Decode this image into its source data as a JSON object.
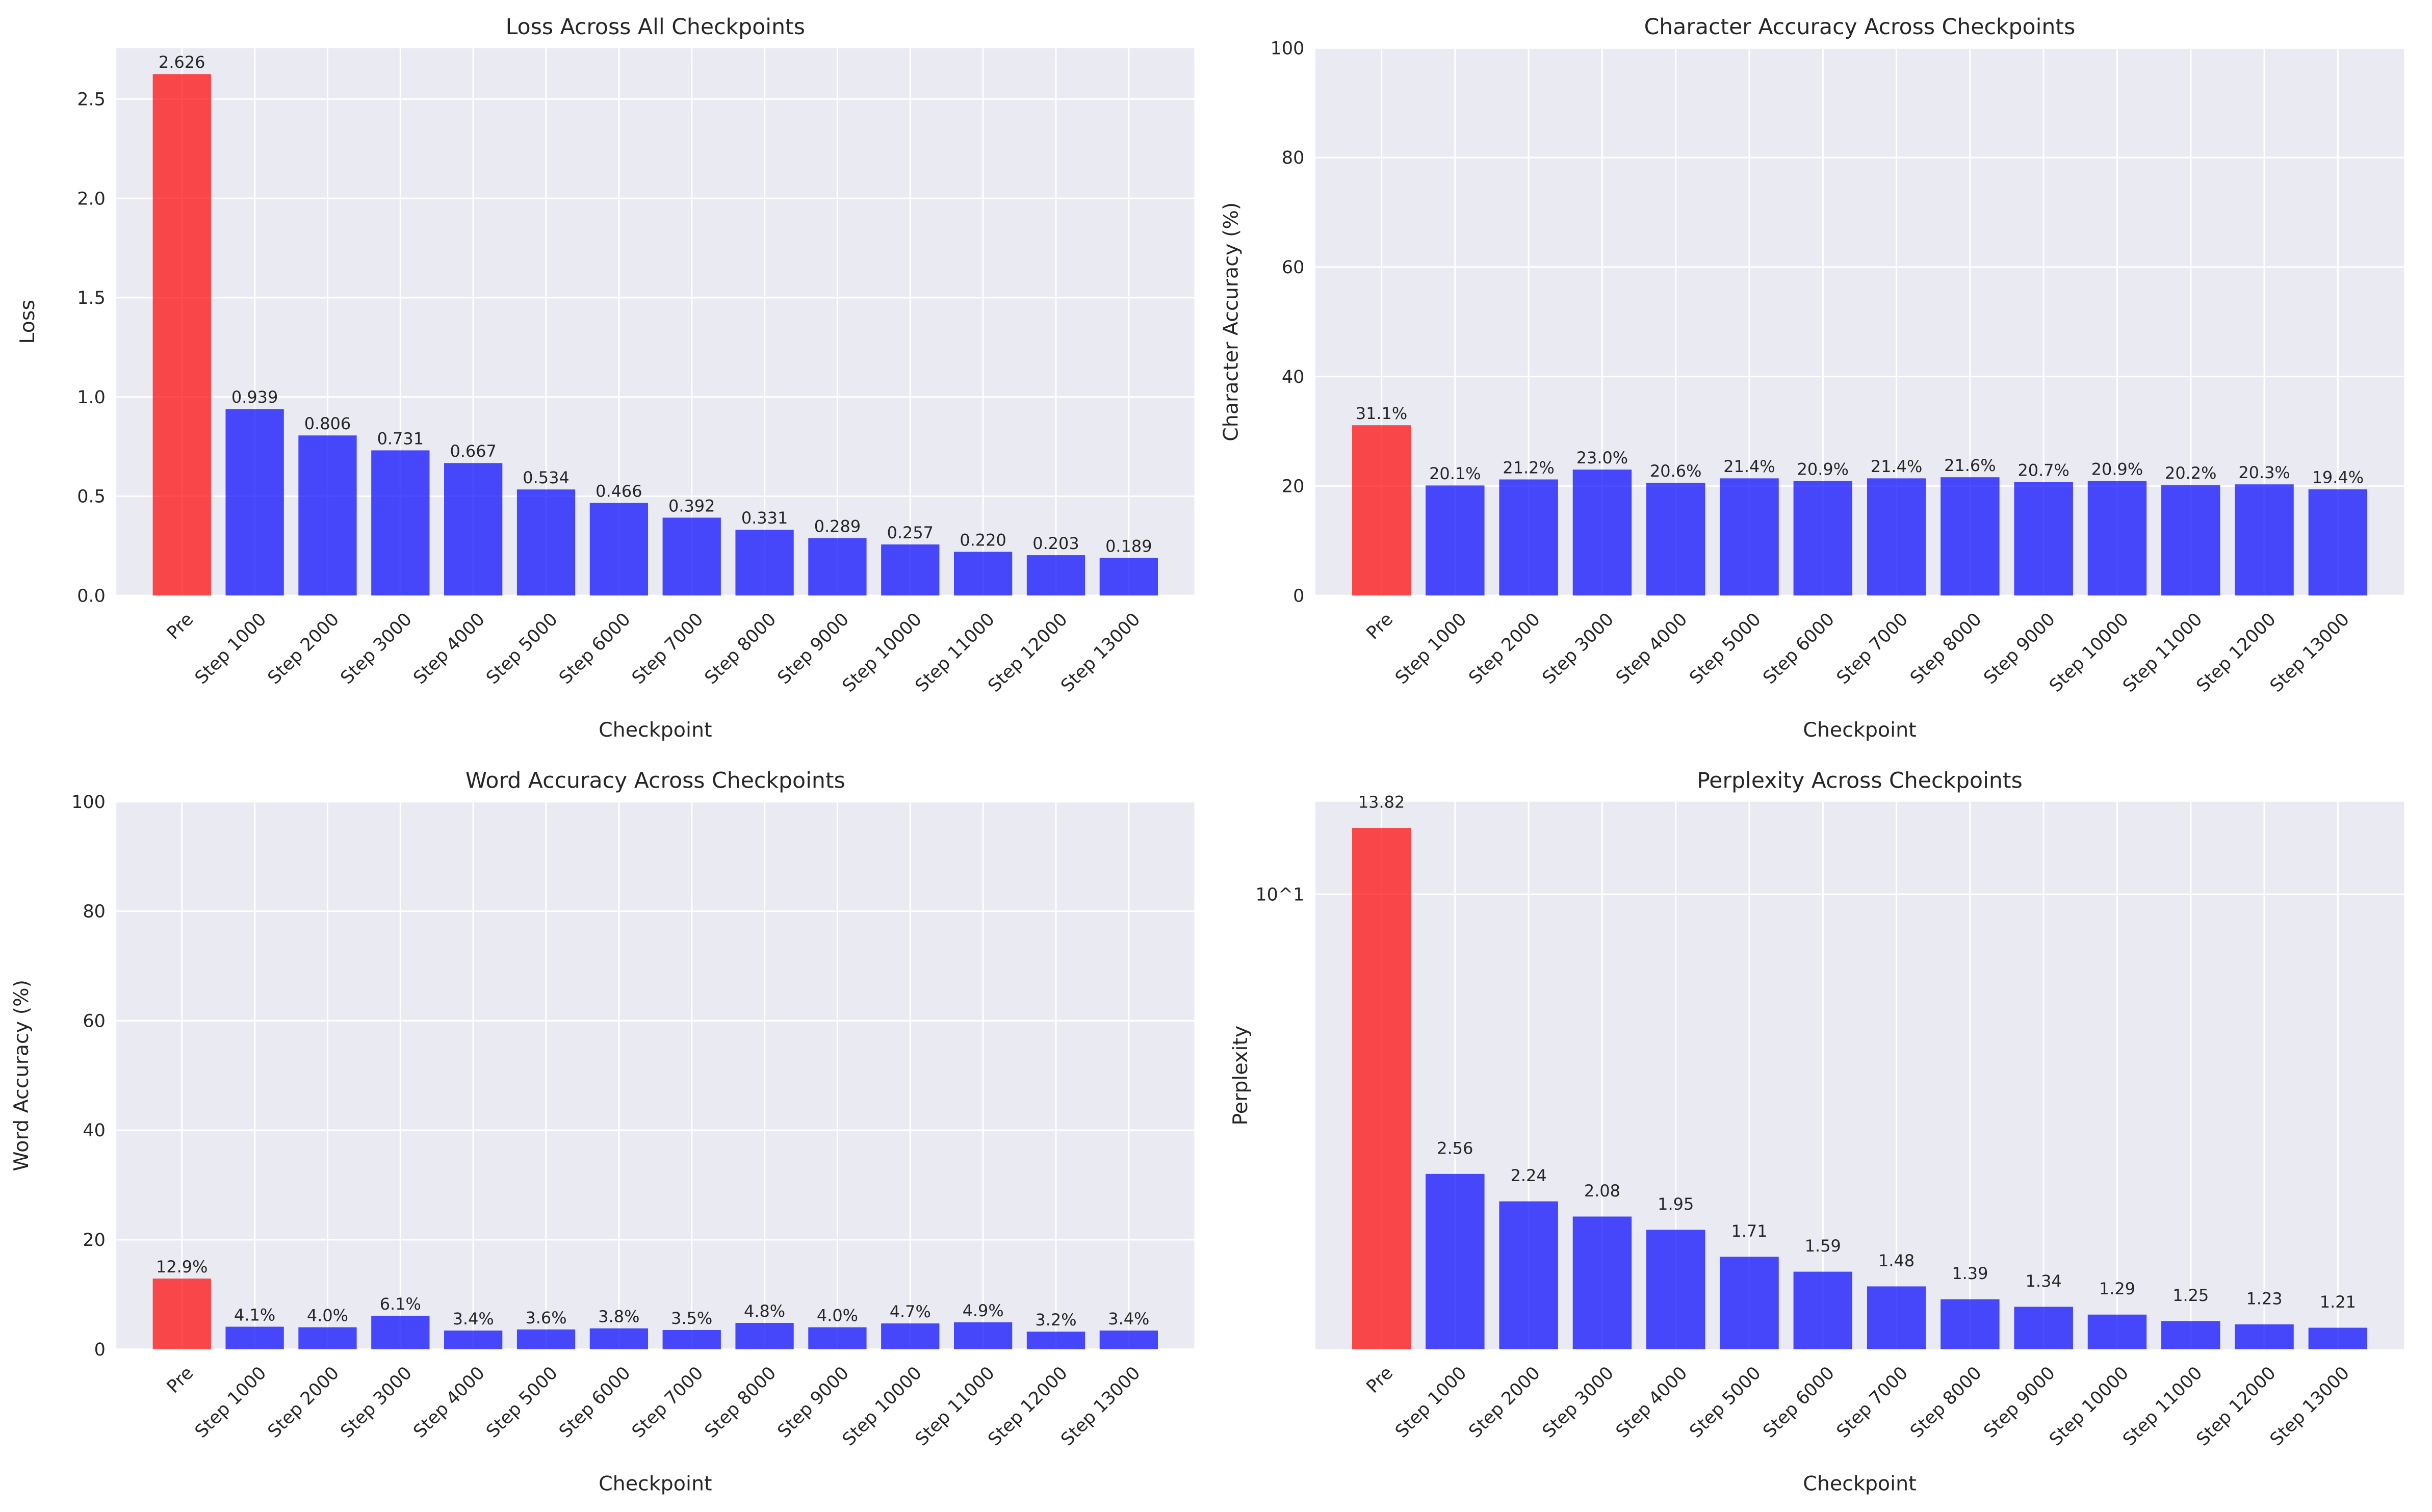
{
  "colors": {
    "pre": "#ff0000",
    "step": "#0000ff",
    "background": "#eaeaf2",
    "grid": "#ffffff"
  },
  "chart_data": [
    {
      "type": "bar",
      "title": "Loss Across All Checkpoints",
      "xlabel": "Checkpoint",
      "ylabel": "Loss",
      "categories": [
        "Pre",
        "Step 1000",
        "Step 2000",
        "Step 3000",
        "Step 4000",
        "Step 5000",
        "Step 6000",
        "Step 7000",
        "Step 8000",
        "Step 9000",
        "Step 10000",
        "Step 11000",
        "Step 12000",
        "Step 13000"
      ],
      "values": [
        2.626,
        0.939,
        0.806,
        0.731,
        0.667,
        0.534,
        0.466,
        0.392,
        0.331,
        0.289,
        0.257,
        0.22,
        0.203,
        0.189
      ],
      "data_labels": [
        "2.626",
        "0.939",
        "0.806",
        "0.731",
        "0.667",
        "0.534",
        "0.466",
        "0.392",
        "0.331",
        "0.289",
        "0.257",
        "0.220",
        "0.203",
        "0.189"
      ],
      "ylim": [
        0,
        2.757
      ],
      "yscale": "linear",
      "yticks": [
        0,
        0.5,
        1.0,
        1.5,
        2.0,
        2.5
      ],
      "ytick_labels": [
        "0.0",
        "0.5",
        "1.0",
        "1.5",
        "2.0",
        "2.5"
      ],
      "grid": true
    },
    {
      "type": "bar",
      "title": "Character Accuracy Across Checkpoints",
      "xlabel": "Checkpoint",
      "ylabel": "Character Accuracy (%)",
      "categories": [
        "Pre",
        "Step 1000",
        "Step 2000",
        "Step 3000",
        "Step 4000",
        "Step 5000",
        "Step 6000",
        "Step 7000",
        "Step 8000",
        "Step 9000",
        "Step 10000",
        "Step 11000",
        "Step 12000",
        "Step 13000"
      ],
      "values": [
        31.1,
        20.1,
        21.2,
        23.0,
        20.6,
        21.4,
        20.9,
        21.4,
        21.6,
        20.7,
        20.9,
        20.2,
        20.3,
        19.4
      ],
      "data_labels": [
        "31.1%",
        "20.1%",
        "21.2%",
        "23.0%",
        "20.6%",
        "21.4%",
        "20.9%",
        "21.4%",
        "21.6%",
        "20.7%",
        "20.9%",
        "20.2%",
        "20.3%",
        "19.4%"
      ],
      "ylim": [
        0,
        100
      ],
      "yscale": "linear",
      "yticks": [
        0,
        20,
        40,
        60,
        80,
        100
      ],
      "ytick_labels": [
        "0",
        "20",
        "40",
        "60",
        "80",
        "100"
      ],
      "grid": true
    },
    {
      "type": "bar",
      "title": "Word Accuracy Across Checkpoints",
      "xlabel": "Checkpoint",
      "ylabel": "Word Accuracy (%)",
      "categories": [
        "Pre",
        "Step 1000",
        "Step 2000",
        "Step 3000",
        "Step 4000",
        "Step 5000",
        "Step 6000",
        "Step 7000",
        "Step 8000",
        "Step 9000",
        "Step 10000",
        "Step 11000",
        "Step 12000",
        "Step 13000"
      ],
      "values": [
        12.9,
        4.1,
        4.0,
        6.1,
        3.4,
        3.6,
        3.8,
        3.5,
        4.8,
        4.0,
        4.7,
        4.9,
        3.2,
        3.4
      ],
      "data_labels": [
        "12.9%",
        "4.1%",
        "4.0%",
        "6.1%",
        "3.4%",
        "3.6%",
        "3.8%",
        "3.5%",
        "4.8%",
        "4.0%",
        "4.7%",
        "4.9%",
        "3.2%",
        "3.4%"
      ],
      "ylim": [
        0,
        100
      ],
      "yscale": "linear",
      "yticks": [
        0,
        20,
        40,
        60,
        80,
        100
      ],
      "ytick_labels": [
        "0",
        "20",
        "40",
        "60",
        "80",
        "100"
      ],
      "grid": true
    },
    {
      "type": "bar",
      "title": "Perplexity Across Checkpoints",
      "xlabel": "Checkpoint",
      "ylabel": "Perplexity",
      "categories": [
        "Pre",
        "Step 1000",
        "Step 2000",
        "Step 3000",
        "Step 4000",
        "Step 5000",
        "Step 6000",
        "Step 7000",
        "Step 8000",
        "Step 9000",
        "Step 10000",
        "Step 11000",
        "Step 12000",
        "Step 13000"
      ],
      "values": [
        13.82,
        2.56,
        2.24,
        2.08,
        1.95,
        1.71,
        1.59,
        1.48,
        1.39,
        1.34,
        1.29,
        1.25,
        1.23,
        1.21
      ],
      "data_labels": [
        "13.82",
        "2.56",
        "2.24",
        "2.08",
        "1.95",
        "1.71",
        "1.59",
        "1.48",
        "1.39",
        "1.34",
        "1.29",
        "1.25",
        "1.23",
        "1.21"
      ],
      "ylim": [
        1.09,
        15.7
      ],
      "yscale": "log",
      "yticks": [
        10
      ],
      "ytick_labels": [
        "10^1"
      ],
      "grid": true
    }
  ]
}
